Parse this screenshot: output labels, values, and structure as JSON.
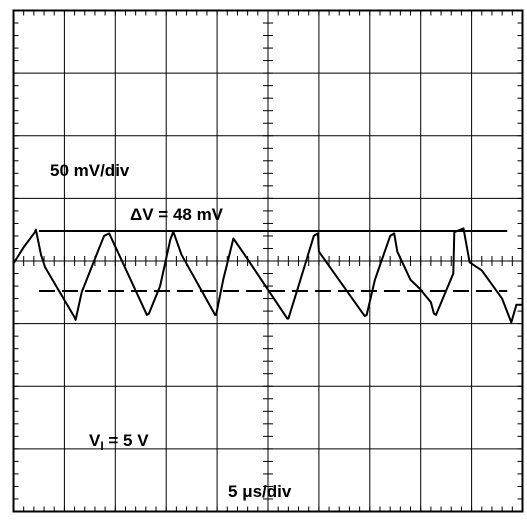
{
  "chart_data": {
    "type": "line",
    "title": "",
    "grid": true,
    "divisions": {
      "x": 10,
      "y": 8
    },
    "labels": {
      "vertical_scale": "50 mV/div",
      "delta_prefix": "ΔV = ",
      "delta_value": "48 mV",
      "input_v": "V",
      "input_sub": "I",
      "input_rest": " = 5 V",
      "time_prefix": "5 ",
      "time_mu": "μ",
      "time_rest": "s/div"
    },
    "units": {
      "x": "div",
      "y": "div"
    },
    "xlim": [
      0,
      10
    ],
    "ylim": [
      -4,
      4
    ],
    "reference_lines": [
      {
        "style": "solid",
        "y_mV": 24,
        "x_range_div": [
          0.5,
          9.7
        ]
      },
      {
        "style": "dashed",
        "y_mV": -24,
        "x_range_div": [
          0.5,
          9.7
        ]
      }
    ],
    "series": [
      {
        "x": [
          0.0,
          0.2,
          0.42,
          0.44,
          0.54,
          0.62,
          1.2,
          1.22,
          1.34,
          1.68,
          1.78,
          1.88,
          2.62,
          2.66,
          2.88,
          3.08,
          3.14,
          3.3,
          3.96,
          3.98,
          4.12,
          4.32,
          4.54,
          5.38,
          5.4,
          5.6,
          5.9,
          5.98,
          6.0,
          6.9,
          6.94,
          7.1,
          7.4,
          7.48,
          7.54,
          7.8,
          7.98,
          8.2,
          8.26,
          8.3,
          8.64,
          8.66,
          8.84,
          8.96,
          9.2,
          9.6,
          9.78,
          9.88,
          10.0
        ],
        "y": [
          -0.04,
          0.22,
          0.46,
          0.5,
          0.1,
          -0.1,
          -0.9,
          -0.94,
          -0.5,
          0.2,
          0.4,
          0.44,
          -0.86,
          -0.84,
          -0.4,
          0.34,
          0.47,
          0.1,
          -0.86,
          -0.86,
          -0.3,
          0.36,
          0.1,
          -0.92,
          -0.92,
          -0.4,
          0.4,
          0.44,
          0.15,
          -0.88,
          -0.86,
          -0.3,
          0.4,
          0.44,
          0.15,
          -0.3,
          -0.44,
          -0.66,
          -0.84,
          -0.86,
          -0.2,
          0.46,
          0.52,
          -0.02,
          -0.15,
          -0.6,
          -0.98,
          -0.7,
          -0.7
        ]
      }
    ]
  }
}
